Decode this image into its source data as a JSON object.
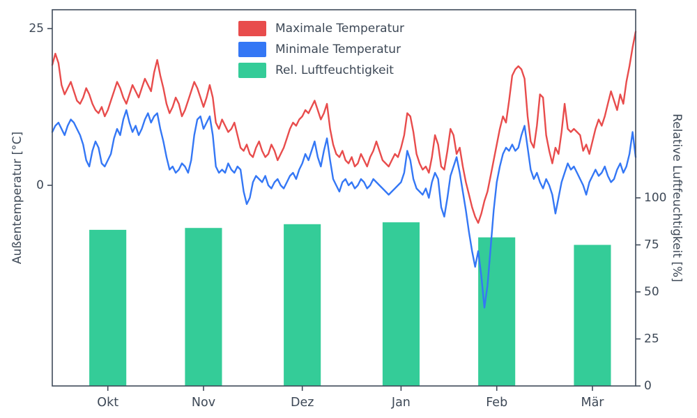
{
  "figure": {
    "background": "#ffffff",
    "axis_color": "#3f4a59",
    "text_color": "#3d4856"
  },
  "chart_data": {
    "type": "line+bar",
    "title": "",
    "left_axis": {
      "label": "Außentemperatur [°C]",
      "ticks": [
        25,
        0
      ],
      "lim": [
        -32,
        28
      ]
    },
    "right_axis": {
      "label": "Relative Luftfeuchtigkeit [%]",
      "ticks": [
        100,
        75,
        50,
        25,
        0
      ],
      "lim": [
        0,
        200
      ]
    },
    "x_axis": {
      "tick_labels": [
        "Okt",
        "Nov",
        "Dez",
        "Jan",
        "Feb",
        "Mär"
      ],
      "tick_indices": [
        18,
        49,
        81,
        113,
        144,
        175
      ],
      "n_points": 190
    },
    "legend": [
      {
        "label": "Maximale Temperatur",
        "color": "#e84c4c"
      },
      {
        "label": "Minimale Temperatur",
        "color": "#3477f5"
      },
      {
        "label": "Rel. Luftfeuchtigkeit",
        "color": "#34cc98"
      }
    ],
    "series": [
      {
        "name": "Maximale Temperatur",
        "axis": "left",
        "type": "line",
        "color": "#e84c4c",
        "values": [
          19.2,
          21,
          19.5,
          16,
          14.5,
          15.5,
          16.5,
          15,
          13.5,
          13,
          14,
          15.5,
          14.5,
          13,
          12,
          11.5,
          12.5,
          11,
          12,
          13.5,
          15,
          16.5,
          15.5,
          14,
          13,
          14.5,
          16,
          15,
          14,
          15.5,
          17,
          16,
          15,
          18,
          20,
          17.5,
          15.5,
          13,
          11.5,
          12.5,
          14,
          13,
          11,
          12,
          13.5,
          15,
          16.5,
          15.5,
          14,
          12.5,
          14,
          16,
          14,
          10,
          9,
          10.5,
          9.5,
          8.5,
          9,
          10,
          8,
          6,
          5.5,
          6.5,
          5,
          4.5,
          6,
          7,
          5.5,
          4.5,
          5,
          6.5,
          5.5,
          4,
          5,
          6,
          7.5,
          9,
          10,
          9.5,
          10.5,
          11,
          12,
          11.5,
          12.5,
          13.5,
          12,
          10.5,
          11.5,
          13,
          9,
          6.5,
          5,
          4.5,
          5.5,
          4,
          3.5,
          4.5,
          3,
          3.5,
          5,
          4,
          3,
          4.5,
          5.5,
          7,
          5.5,
          4,
          3.5,
          3,
          4,
          5,
          4.5,
          6,
          8,
          11.5,
          11,
          8.5,
          5,
          3.5,
          2.5,
          3,
          2,
          4.5,
          8,
          6.5,
          3,
          2.5,
          5.5,
          9,
          8,
          5,
          6,
          3,
          0.5,
          -1.5,
          -3.5,
          -5,
          -6,
          -4.5,
          -2.5,
          -1,
          1.5,
          4,
          6.5,
          9,
          11,
          10,
          13.5,
          17.5,
          18.5,
          19,
          18.5,
          17,
          11,
          7,
          6,
          9.5,
          14.5,
          14,
          8,
          5.5,
          3.5,
          6,
          5,
          8.5,
          13,
          9,
          8.5,
          9,
          8.5,
          8,
          5.5,
          6.5,
          5,
          7,
          9,
          10.5,
          9.5,
          11,
          13,
          15,
          13.5,
          12,
          14.5,
          13,
          16.5,
          19,
          22,
          24.5
        ]
      },
      {
        "name": "Minimale Temperatur",
        "axis": "left",
        "type": "line",
        "color": "#3477f5",
        "values": [
          8.5,
          9.5,
          10,
          9,
          8,
          9.5,
          10.5,
          10,
          9,
          8,
          6.5,
          4,
          3,
          5.5,
          7,
          6,
          3.5,
          3,
          4,
          5,
          7.5,
          9,
          8,
          10.5,
          12,
          10,
          8.5,
          9.5,
          8,
          9,
          10.5,
          11.5,
          10,
          11,
          11.5,
          9,
          7,
          4.5,
          2.5,
          3,
          2,
          2.5,
          3.5,
          3,
          2,
          4,
          8,
          10.5,
          11,
          9,
          10,
          11,
          8,
          3,
          2,
          2.5,
          2,
          3.5,
          2.5,
          2,
          3,
          2.5,
          -1,
          -3,
          -2,
          0.5,
          1.5,
          1,
          0.5,
          1.5,
          0,
          -0.5,
          0.5,
          1,
          0,
          -0.5,
          0.5,
          1.5,
          2,
          1,
          2.5,
          3.5,
          5,
          4,
          5.5,
          7,
          4.5,
          3,
          5.5,
          7.5,
          4,
          1,
          0,
          -1,
          0.5,
          1,
          0,
          0.5,
          -0.5,
          0,
          1,
          0.5,
          -0.5,
          0,
          1,
          0.5,
          0,
          -0.5,
          -1,
          -1.5,
          -1,
          -0.5,
          0,
          0.5,
          2,
          5.5,
          4,
          1,
          -0.5,
          -1,
          -1.5,
          -0.5,
          -2,
          0.5,
          2,
          1,
          -3.5,
          -5,
          -2,
          1.5,
          3,
          4.5,
          2,
          -1,
          -4,
          -7.5,
          -10.5,
          -13,
          -10.5,
          -14.5,
          -19.5,
          -16,
          -10,
          -4,
          0.5,
          3,
          5,
          6,
          5.5,
          6.5,
          5.5,
          6,
          8,
          9.5,
          6,
          2.5,
          1,
          2,
          0.5,
          -0.5,
          1,
          0,
          -1.5,
          -4.5,
          -2,
          0.5,
          2,
          3.5,
          2.5,
          3,
          2,
          1,
          0,
          -1.5,
          0.5,
          1.5,
          2.5,
          1.5,
          2,
          3,
          1.5,
          0.5,
          1,
          2.5,
          3.5,
          2,
          3,
          5,
          8.5,
          4.5
        ]
      },
      {
        "name": "Rel. Luftfeuchtigkeit",
        "axis": "right",
        "type": "bar",
        "color": "#34cc98",
        "categories": [
          "Okt",
          "Nov",
          "Dez",
          "Jan",
          "Feb",
          "Mär"
        ],
        "values": [
          83,
          84,
          86,
          87,
          79,
          75
        ],
        "bar_width_days": 12
      }
    ]
  }
}
